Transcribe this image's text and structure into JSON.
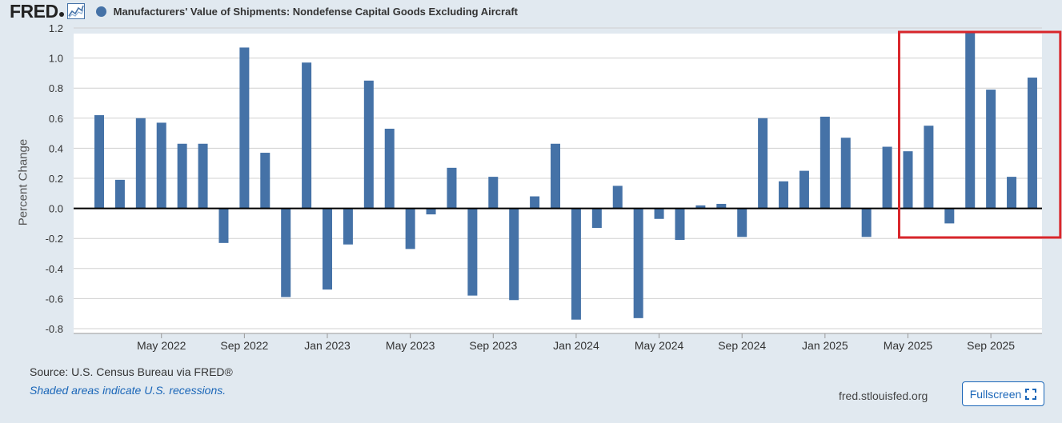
{
  "header": {
    "logo_text": "FRED",
    "logo_icon": "line-chart-icon",
    "series_title": "Manufacturers' Value of Shipments: Nondefense Capital Goods Excluding Aircraft"
  },
  "footer": {
    "source": "Source: U.S. Census Bureau via FRED®",
    "recession_note": "Shaded areas indicate U.S. recessions.",
    "site": "fred.stlouisfed.org",
    "fullscreen_label": "Fullscreen",
    "fullscreen_icon": "expand-icon"
  },
  "colors": {
    "bar": "#4572a7",
    "highlight_box": "#d9262b",
    "page_bg": "#e1e9f0",
    "plot_bg": "#ffffff"
  },
  "chart_data": {
    "type": "bar",
    "title": "Manufacturers' Value of Shipments: Nondefense Capital Goods Excluding Aircraft",
    "ylabel": "Percent Change",
    "xlabel": "",
    "ylim": [
      -0.8,
      1.2
    ],
    "yticks": [
      1.2,
      1.0,
      0.8,
      0.6,
      0.4,
      0.2,
      0.0,
      -0.2,
      -0.4,
      -0.6,
      -0.8
    ],
    "ytick_labels": [
      "1.2",
      "1.0",
      "0.8",
      "0.6",
      "0.4",
      "0.2",
      "0.0",
      "-0.2",
      "-0.4",
      "-0.6",
      "-0.8"
    ],
    "grid": true,
    "xtick_labels": [
      {
        "label": "May 2022",
        "date": "2022-05"
      },
      {
        "label": "Sep 2022",
        "date": "2022-09"
      },
      {
        "label": "Jan 2023",
        "date": "2023-01"
      },
      {
        "label": "May 2023",
        "date": "2023-05"
      },
      {
        "label": "Sep 2023",
        "date": "2023-09"
      },
      {
        "label": "Jan 2024",
        "date": "2024-01"
      },
      {
        "label": "May 2024",
        "date": "2024-05"
      },
      {
        "label": "Sep 2024",
        "date": "2024-09"
      },
      {
        "label": "Jan 2025",
        "date": "2025-01"
      },
      {
        "label": "May 2025",
        "date": "2025-05"
      },
      {
        "label": "Sep 2025",
        "date": "2025-09"
      }
    ],
    "dates": [
      "2022-02",
      "2022-03",
      "2022-04",
      "2022-05",
      "2022-06",
      "2022-07",
      "2022-08",
      "2022-09",
      "2022-10",
      "2022-11",
      "2022-12",
      "2023-01",
      "2023-02",
      "2023-03",
      "2023-04",
      "2023-05",
      "2023-06",
      "2023-07",
      "2023-08",
      "2023-09",
      "2023-10",
      "2023-11",
      "2023-12",
      "2024-01",
      "2024-02",
      "2024-03",
      "2024-04",
      "2024-05",
      "2024-06",
      "2024-07",
      "2024-08",
      "2024-09",
      "2024-10",
      "2024-11",
      "2024-12",
      "2025-01",
      "2025-02",
      "2025-03",
      "2025-04",
      "2025-05",
      "2025-06",
      "2025-07",
      "2025-08",
      "2025-09",
      "2025-10",
      "2025-11",
      "2025-12"
    ],
    "values": [
      0.62,
      0.19,
      0.6,
      0.57,
      0.43,
      0.43,
      -0.23,
      1.07,
      0.37,
      -0.59,
      0.97,
      -0.54,
      -0.24,
      0.85,
      0.53,
      -0.27,
      -0.04,
      0.27,
      -0.58,
      0.21,
      -0.61,
      0.08,
      0.43,
      -0.74,
      -0.13,
      0.15,
      -0.73,
      -0.07,
      -0.21,
      0.02,
      0.03,
      -0.19,
      0.6,
      0.18,
      0.25,
      0.61,
      0.47,
      -0.19,
      0.41,
      0.38,
      0.55,
      -0.1,
      1.17,
      0.79,
      0.21,
      0.87,
      0.0
    ],
    "highlight_range": [
      "2025-05",
      "2025-12"
    ],
    "legend": "top-left"
  }
}
